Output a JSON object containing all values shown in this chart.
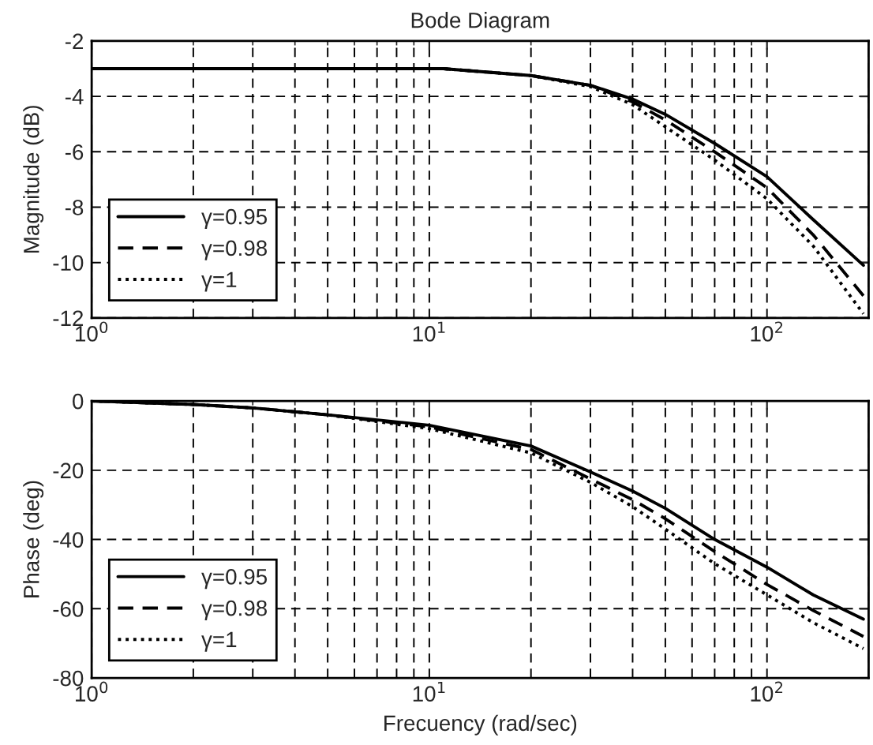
{
  "chart_data": [
    {
      "type": "line",
      "title": "Bode Diagram",
      "ylabel": "Magnitude (dB)",
      "log": "x",
      "grid": true,
      "legend": "lower left",
      "xlim": [
        1,
        200
      ],
      "xticks": [
        {
          "value": 1,
          "label": "10$^{0}$"
        },
        {
          "value": 10,
          "label": "10$^{1}$"
        },
        {
          "value": 100,
          "label": "10$^{2}$"
        }
      ],
      "ylim": [
        -12,
        -2
      ],
      "yticks": [
        -12,
        -10,
        -8,
        -6,
        -4,
        -2
      ],
      "x": [
        1,
        2,
        5,
        11,
        20,
        30,
        40,
        50,
        70,
        100,
        137,
        193
      ],
      "series": [
        {
          "name": "γ=0.95",
          "color": "#000000",
          "line_style": "solid",
          "values": [
            -3.0,
            -3.0,
            -3.0,
            -3.0,
            -3.25,
            -3.6,
            -4.1,
            -4.65,
            -5.7,
            -6.9,
            -8.45,
            -10.1
          ]
        },
        {
          "name": "γ=0.98",
          "color": "#000000",
          "line_style": "dashed",
          "values": [
            -3.0,
            -3.0,
            -3.0,
            -3.0,
            -3.25,
            -3.6,
            -4.2,
            -4.85,
            -6.0,
            -7.3,
            -9.0,
            -11.2
          ]
        },
        {
          "name": "γ=1",
          "color": "#000000",
          "line_style": "dotted",
          "values": [
            -3.0,
            -3.0,
            -3.0,
            -3.0,
            -3.25,
            -3.65,
            -4.3,
            -5.1,
            -6.3,
            -7.7,
            -9.4,
            -11.85
          ]
        }
      ]
    },
    {
      "type": "line",
      "xlabel": "Frecuency (rad/sec)",
      "ylabel": "Phase (deg)",
      "log": "x",
      "grid": true,
      "legend": "lower left",
      "xlim": [
        1,
        200
      ],
      "xticks": [
        {
          "value": 1,
          "label": "10$^{0}$"
        },
        {
          "value": 10,
          "label": "10$^{1}$"
        },
        {
          "value": 100,
          "label": "10$^{2}$"
        }
      ],
      "ylim": [
        -80,
        0
      ],
      "yticks": [
        -80,
        -60,
        -40,
        -20,
        0
      ],
      "x": [
        1,
        2,
        3,
        5,
        10,
        20,
        30,
        40,
        50,
        70,
        100,
        137,
        193
      ],
      "series": [
        {
          "name": "γ=0.95",
          "color": "#000000",
          "line_style": "solid",
          "values": [
            0,
            -1,
            -2,
            -4,
            -7,
            -13,
            -20.5,
            -26,
            -31,
            -40,
            -48,
            -56,
            -63
          ]
        },
        {
          "name": "γ=0.98",
          "color": "#000000",
          "line_style": "dashed",
          "values": [
            0,
            -1,
            -2,
            -4,
            -7.5,
            -14,
            -22.5,
            -28.5,
            -34,
            -43.5,
            -53,
            -60.5,
            -68
          ]
        },
        {
          "name": "γ=1",
          "color": "#000000",
          "line_style": "dotted",
          "values": [
            0,
            -1,
            -2,
            -4,
            -8,
            -15,
            -23.5,
            -30.5,
            -37,
            -47,
            -56,
            -64,
            -71.5
          ]
        }
      ]
    }
  ]
}
